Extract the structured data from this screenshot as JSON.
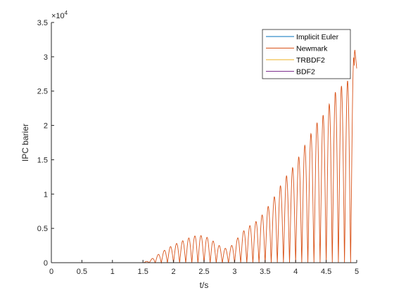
{
  "chart_data": {
    "type": "line",
    "title": "",
    "xlabel": "t/s",
    "ylabel": "IPC barier",
    "exponent_label": "×10",
    "exponent_power": "4",
    "xlim": [
      0,
      5
    ],
    "ylim": [
      0,
      35000
    ],
    "x_ticks": [
      "0",
      "0.5",
      "1",
      "1.5",
      "2",
      "2.5",
      "3",
      "3.5",
      "4",
      "4.5",
      "5"
    ],
    "y_ticks": [
      "0",
      "0.5",
      "1",
      "1.5",
      "2",
      "2.5",
      "3",
      "3.5"
    ],
    "legend_position": "top-right",
    "grid": false,
    "series": [
      {
        "name": "Implicit Euler",
        "color": "#0072BD",
        "x": [
          0,
          5
        ],
        "y": [
          0,
          0
        ]
      },
      {
        "name": "Newmark",
        "color": "#D95319",
        "x": [
          0,
          1.5,
          1.62,
          1.7,
          1.8,
          1.9,
          2.0,
          2.1,
          2.2,
          2.3,
          2.4,
          2.5,
          2.6,
          2.7,
          2.8,
          2.9,
          3.0,
          3.1,
          3.2,
          3.3,
          3.4,
          3.5,
          3.6,
          3.7,
          3.8,
          3.9,
          4.0,
          4.1,
          4.2,
          4.3,
          4.4,
          4.5,
          4.6,
          4.7,
          4.8,
          4.9,
          4.97,
          5.0
        ],
        "y": [
          0,
          0,
          400,
          900,
          1500,
          2100,
          2600,
          3000,
          3400,
          3800,
          4000,
          3900,
          3500,
          2800,
          2200,
          2000,
          3000,
          4200,
          5100,
          5700,
          6300,
          7600,
          8800,
          10400,
          12000,
          13300,
          14400,
          16400,
          17800,
          19800,
          21000,
          22000,
          24200,
          25500,
          26000,
          27000,
          31000,
          28300
        ],
        "note_oscillation": "oscillates between 0 and the listed peak envelope"
      },
      {
        "name": "TRBDF2",
        "color": "#EDB120",
        "x": [
          0,
          5
        ],
        "y": [
          0,
          0
        ]
      },
      {
        "name": "BDF2",
        "color": "#7E2F8E",
        "x": [
          0,
          5
        ],
        "y": [
          0,
          0
        ]
      }
    ]
  }
}
